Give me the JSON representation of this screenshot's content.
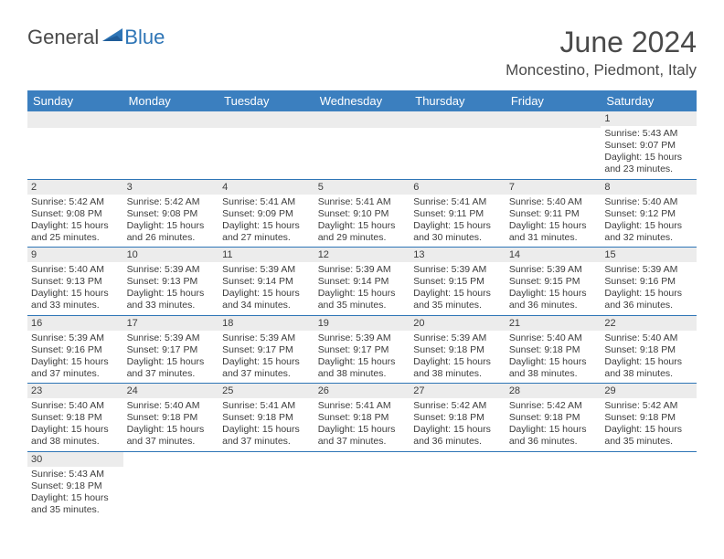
{
  "brand": {
    "part1": "General",
    "part2": "Blue",
    "color_general": "#4a4a4a",
    "color_blue": "#2e75b6",
    "triangle_color": "#2e75b6"
  },
  "title": "June 2024",
  "location": "Moncestino, Piedmont, Italy",
  "header_bg": "#3b7fbf",
  "header_text_color": "#ffffff",
  "daynum_bg": "#ececec",
  "cell_border_color": "#2e75b6",
  "text_color": "#3c3c3c",
  "days_of_week": [
    "Sunday",
    "Monday",
    "Tuesday",
    "Wednesday",
    "Thursday",
    "Friday",
    "Saturday"
  ],
  "weeks": [
    [
      {
        "n": "",
        "lines": []
      },
      {
        "n": "",
        "lines": []
      },
      {
        "n": "",
        "lines": []
      },
      {
        "n": "",
        "lines": []
      },
      {
        "n": "",
        "lines": []
      },
      {
        "n": "",
        "lines": []
      },
      {
        "n": "1",
        "lines": [
          "Sunrise: 5:43 AM",
          "Sunset: 9:07 PM",
          "Daylight: 15 hours and 23 minutes."
        ]
      }
    ],
    [
      {
        "n": "2",
        "lines": [
          "Sunrise: 5:42 AM",
          "Sunset: 9:08 PM",
          "Daylight: 15 hours and 25 minutes."
        ]
      },
      {
        "n": "3",
        "lines": [
          "Sunrise: 5:42 AM",
          "Sunset: 9:08 PM",
          "Daylight: 15 hours and 26 minutes."
        ]
      },
      {
        "n": "4",
        "lines": [
          "Sunrise: 5:41 AM",
          "Sunset: 9:09 PM",
          "Daylight: 15 hours and 27 minutes."
        ]
      },
      {
        "n": "5",
        "lines": [
          "Sunrise: 5:41 AM",
          "Sunset: 9:10 PM",
          "Daylight: 15 hours and 29 minutes."
        ]
      },
      {
        "n": "6",
        "lines": [
          "Sunrise: 5:41 AM",
          "Sunset: 9:11 PM",
          "Daylight: 15 hours and 30 minutes."
        ]
      },
      {
        "n": "7",
        "lines": [
          "Sunrise: 5:40 AM",
          "Sunset: 9:11 PM",
          "Daylight: 15 hours and 31 minutes."
        ]
      },
      {
        "n": "8",
        "lines": [
          "Sunrise: 5:40 AM",
          "Sunset: 9:12 PM",
          "Daylight: 15 hours and 32 minutes."
        ]
      }
    ],
    [
      {
        "n": "9",
        "lines": [
          "Sunrise: 5:40 AM",
          "Sunset: 9:13 PM",
          "Daylight: 15 hours and 33 minutes."
        ]
      },
      {
        "n": "10",
        "lines": [
          "Sunrise: 5:39 AM",
          "Sunset: 9:13 PM",
          "Daylight: 15 hours and 33 minutes."
        ]
      },
      {
        "n": "11",
        "lines": [
          "Sunrise: 5:39 AM",
          "Sunset: 9:14 PM",
          "Daylight: 15 hours and 34 minutes."
        ]
      },
      {
        "n": "12",
        "lines": [
          "Sunrise: 5:39 AM",
          "Sunset: 9:14 PM",
          "Daylight: 15 hours and 35 minutes."
        ]
      },
      {
        "n": "13",
        "lines": [
          "Sunrise: 5:39 AM",
          "Sunset: 9:15 PM",
          "Daylight: 15 hours and 35 minutes."
        ]
      },
      {
        "n": "14",
        "lines": [
          "Sunrise: 5:39 AM",
          "Sunset: 9:15 PM",
          "Daylight: 15 hours and 36 minutes."
        ]
      },
      {
        "n": "15",
        "lines": [
          "Sunrise: 5:39 AM",
          "Sunset: 9:16 PM",
          "Daylight: 15 hours and 36 minutes."
        ]
      }
    ],
    [
      {
        "n": "16",
        "lines": [
          "Sunrise: 5:39 AM",
          "Sunset: 9:16 PM",
          "Daylight: 15 hours and 37 minutes."
        ]
      },
      {
        "n": "17",
        "lines": [
          "Sunrise: 5:39 AM",
          "Sunset: 9:17 PM",
          "Daylight: 15 hours and 37 minutes."
        ]
      },
      {
        "n": "18",
        "lines": [
          "Sunrise: 5:39 AM",
          "Sunset: 9:17 PM",
          "Daylight: 15 hours and 37 minutes."
        ]
      },
      {
        "n": "19",
        "lines": [
          "Sunrise: 5:39 AM",
          "Sunset: 9:17 PM",
          "Daylight: 15 hours and 38 minutes."
        ]
      },
      {
        "n": "20",
        "lines": [
          "Sunrise: 5:39 AM",
          "Sunset: 9:18 PM",
          "Daylight: 15 hours and 38 minutes."
        ]
      },
      {
        "n": "21",
        "lines": [
          "Sunrise: 5:40 AM",
          "Sunset: 9:18 PM",
          "Daylight: 15 hours and 38 minutes."
        ]
      },
      {
        "n": "22",
        "lines": [
          "Sunrise: 5:40 AM",
          "Sunset: 9:18 PM",
          "Daylight: 15 hours and 38 minutes."
        ]
      }
    ],
    [
      {
        "n": "23",
        "lines": [
          "Sunrise: 5:40 AM",
          "Sunset: 9:18 PM",
          "Daylight: 15 hours and 38 minutes."
        ]
      },
      {
        "n": "24",
        "lines": [
          "Sunrise: 5:40 AM",
          "Sunset: 9:18 PM",
          "Daylight: 15 hours and 37 minutes."
        ]
      },
      {
        "n": "25",
        "lines": [
          "Sunrise: 5:41 AM",
          "Sunset: 9:18 PM",
          "Daylight: 15 hours and 37 minutes."
        ]
      },
      {
        "n": "26",
        "lines": [
          "Sunrise: 5:41 AM",
          "Sunset: 9:18 PM",
          "Daylight: 15 hours and 37 minutes."
        ]
      },
      {
        "n": "27",
        "lines": [
          "Sunrise: 5:42 AM",
          "Sunset: 9:18 PM",
          "Daylight: 15 hours and 36 minutes."
        ]
      },
      {
        "n": "28",
        "lines": [
          "Sunrise: 5:42 AM",
          "Sunset: 9:18 PM",
          "Daylight: 15 hours and 36 minutes."
        ]
      },
      {
        "n": "29",
        "lines": [
          "Sunrise: 5:42 AM",
          "Sunset: 9:18 PM",
          "Daylight: 15 hours and 35 minutes."
        ]
      }
    ],
    [
      {
        "n": "30",
        "lines": [
          "Sunrise: 5:43 AM",
          "Sunset: 9:18 PM",
          "Daylight: 15 hours and 35 minutes."
        ]
      },
      {
        "n": "",
        "lines": []
      },
      {
        "n": "",
        "lines": []
      },
      {
        "n": "",
        "lines": []
      },
      {
        "n": "",
        "lines": []
      },
      {
        "n": "",
        "lines": []
      },
      {
        "n": "",
        "lines": []
      }
    ]
  ]
}
